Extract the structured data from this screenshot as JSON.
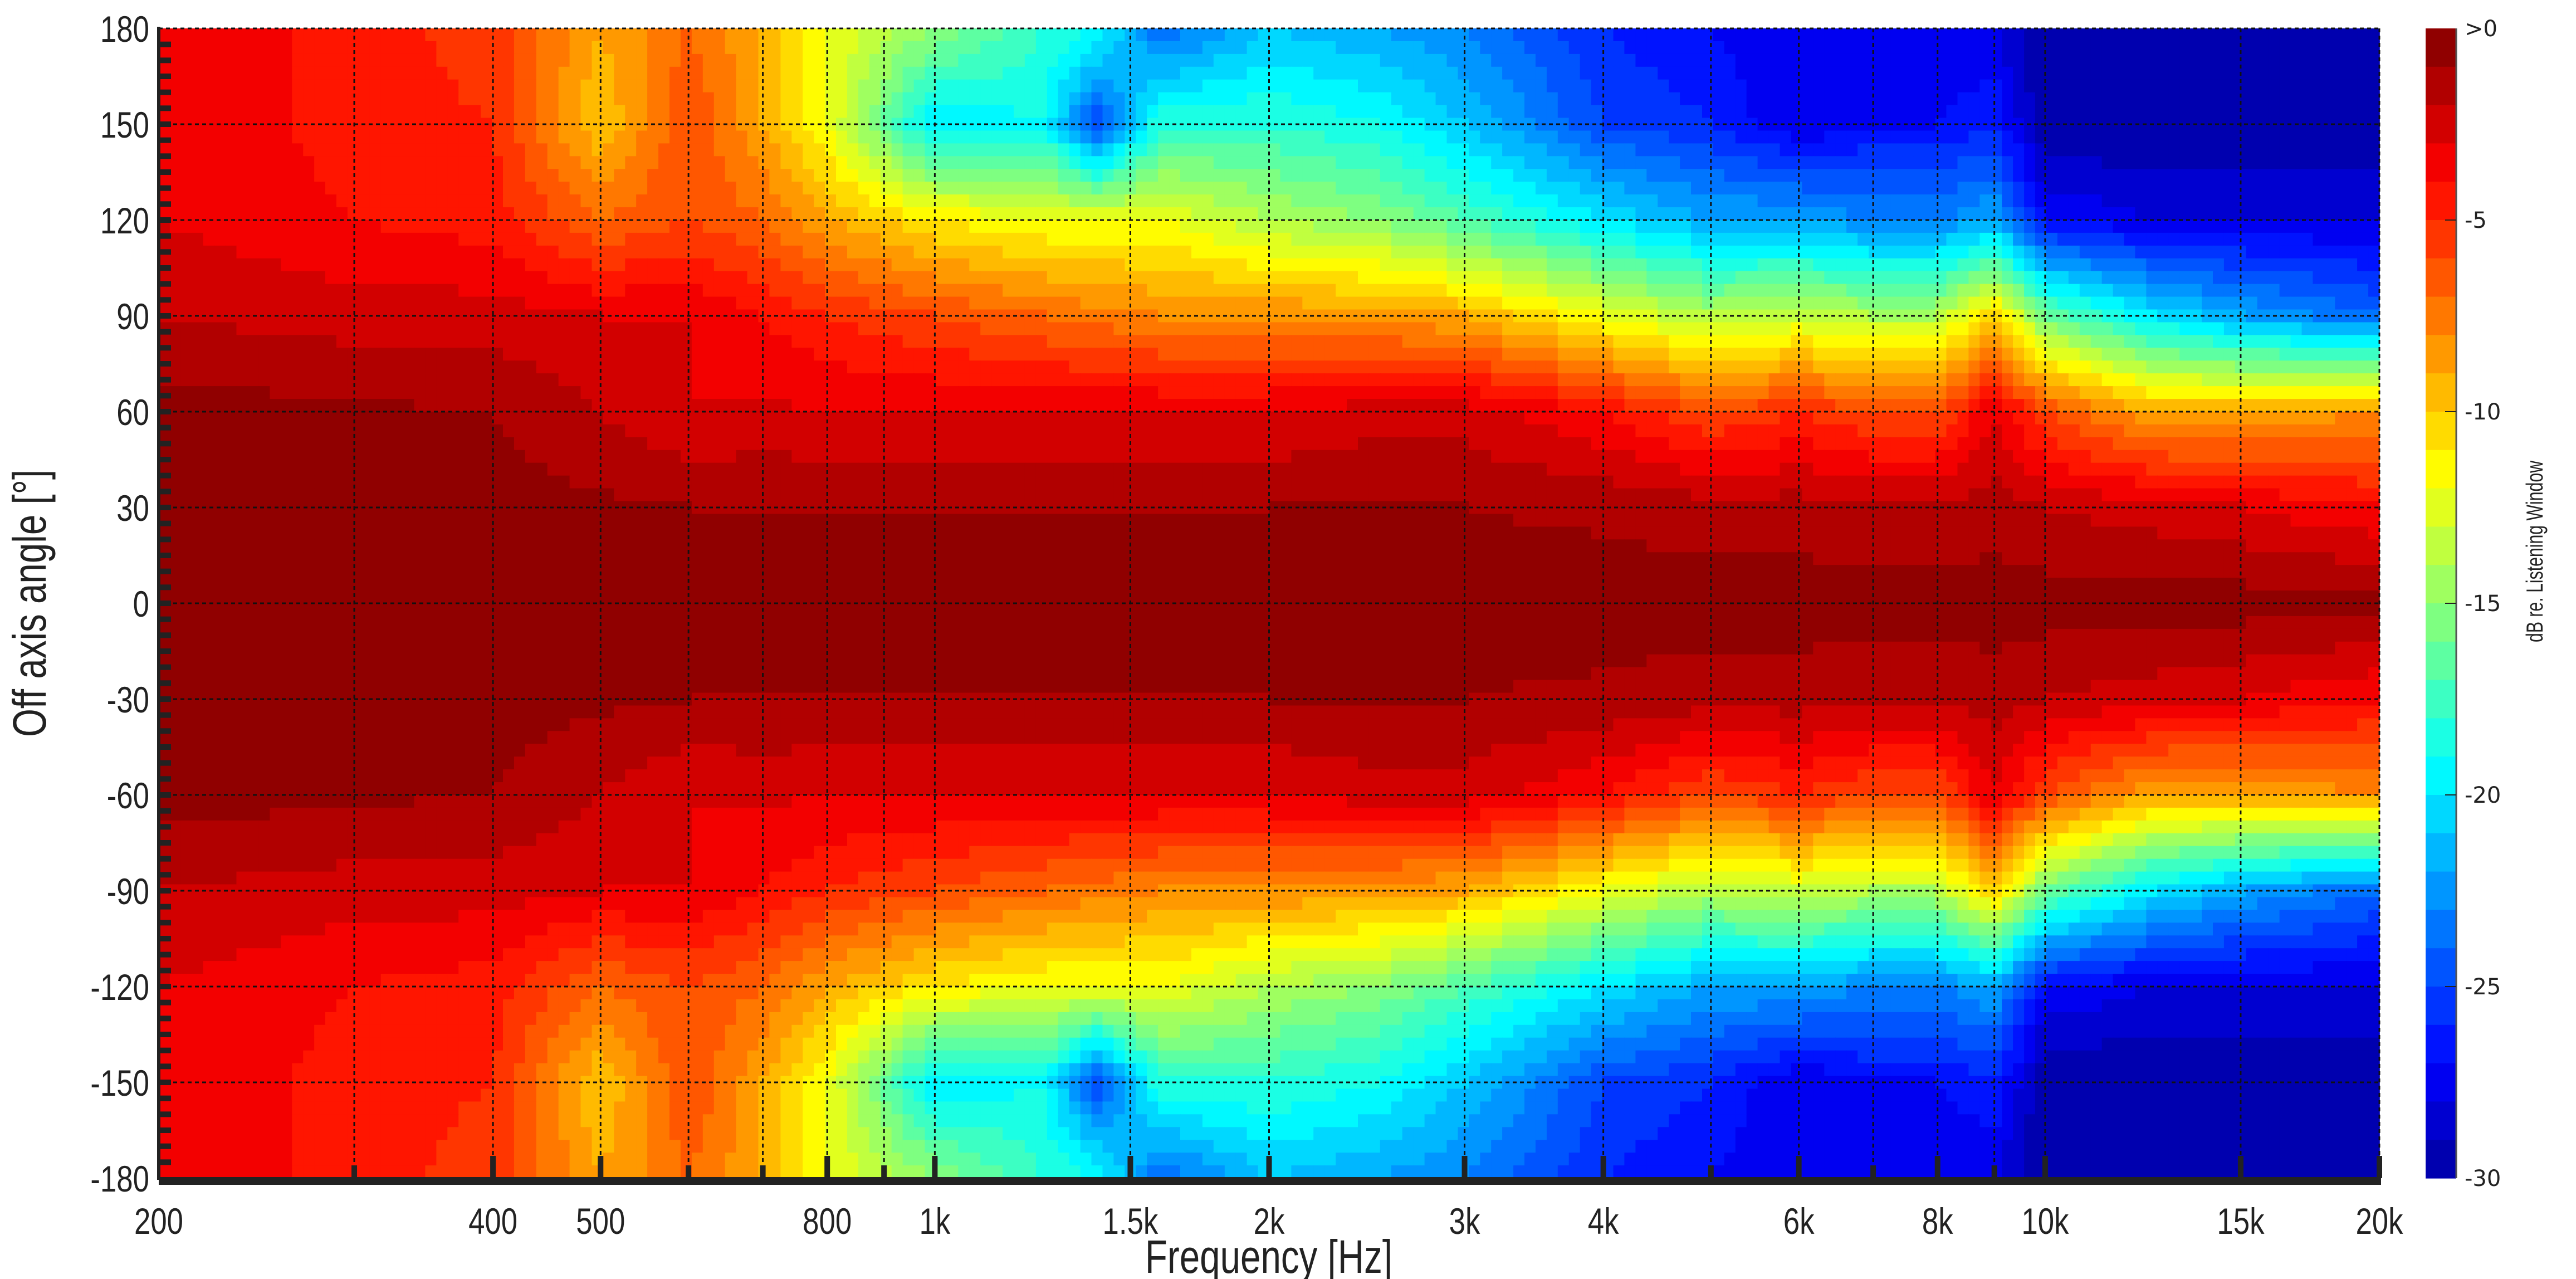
{
  "chart_data": {
    "type": "heatmap",
    "title": "",
    "xlabel": "Frequency [Hz]",
    "ylabel": "Off axis angle [°]",
    "xscale": "log",
    "xlim": [
      200,
      20000
    ],
    "ylim": [
      -180,
      180
    ],
    "grid": true,
    "x_tick_values": [
      200,
      400,
      500,
      800,
      1000,
      1500,
      2000,
      3000,
      4000,
      6000,
      8000,
      10000,
      15000,
      20000
    ],
    "x_tick_labels": [
      "200",
      "400",
      "500",
      "800",
      "1k",
      "1.5k",
      "2k",
      "3k",
      "4k",
      "6k",
      "8k",
      "10k",
      "15k",
      "20k"
    ],
    "x_minor_grid": [
      300,
      600,
      700,
      900,
      5000,
      7000,
      9000
    ],
    "y_tick_values": [
      180,
      150,
      120,
      90,
      60,
      30,
      0,
      -30,
      -60,
      -90,
      -120,
      -150,
      -180
    ],
    "y_tick_labels": [
      "180",
      "150",
      "120",
      "90",
      "60",
      "30",
      "0",
      "-30",
      "-60",
      "-90",
      "-120",
      "-150",
      "-180"
    ],
    "colorbar": {
      "label": "dB re. Listening Window",
      "range": [
        -30,
        0
      ],
      "step": 1,
      "tick_values": [
        0,
        -5,
        -10,
        -15,
        -20,
        -25,
        -30
      ],
      "tick_labels": [
        ">0",
        "-5",
        "-10",
        "-15",
        "-20",
        "-25",
        "-30"
      ],
      "colormap": "jet"
    },
    "symmetric_about_0deg": true,
    "frequencies": [
      200,
      300,
      400,
      500,
      600,
      700,
      800,
      1000,
      1250,
      1400,
      1600,
      2000,
      2500,
      3000,
      4000,
      5000,
      6000,
      7000,
      8000,
      9000,
      10000,
      12500,
      15000,
      20000
    ],
    "angles": [
      0,
      30,
      60,
      90,
      120,
      150,
      180
    ],
    "values_db": [
      [
        -0.5,
        -0.5,
        -0.5,
        -0.5,
        -0.5,
        -0.5,
        -0.5,
        -0.5,
        -0.5,
        -0.5,
        -0.5,
        -0.5,
        -0.5,
        -0.5,
        -0.5,
        -0.5,
        -0.5,
        -0.5,
        -0.5,
        -0.5,
        -0.5,
        -0.5,
        -0.5,
        -0.5
      ],
      [
        -0.5,
        -0.5,
        -0.6,
        -0.8,
        -1,
        -1,
        -1,
        -1,
        -1,
        -1,
        -1,
        -1,
        -0.8,
        -1,
        -1.2,
        -1.5,
        -1.5,
        -1.8,
        -1.8,
        -1.5,
        -2,
        -2.5,
        -3,
        -4
      ],
      [
        -0.5,
        -0.8,
        -1,
        -2,
        -3,
        -2.8,
        -3,
        -3,
        -3,
        -3,
        -3,
        -3,
        -2.5,
        -2.5,
        -4,
        -6,
        -5,
        -6,
        -6,
        -3,
        -6,
        -9,
        -9,
        -8
      ],
      [
        -2,
        -2.5,
        -2.5,
        -3,
        -3,
        -4,
        -5,
        -6,
        -7,
        -7.5,
        -8,
        -8,
        -8.5,
        -9,
        -12,
        -14,
        -13,
        -14,
        -14,
        -10,
        -16,
        -20,
        -22,
        -24
      ],
      [
        -3,
        -4,
        -4.5,
        -7,
        -6,
        -7,
        -9,
        -11,
        -12,
        -12,
        -12,
        -14,
        -15,
        -17,
        -20,
        -22,
        -22,
        -23,
        -23,
        -22,
        -27,
        -28,
        -28,
        -28
      ],
      [
        -3,
        -4.5,
        -5,
        -10,
        -6,
        -9,
        -12,
        -20,
        -19,
        -25,
        -18,
        -18,
        -19,
        -21,
        -25,
        -26,
        -28,
        -27,
        -27,
        -26,
        -30,
        -30,
        -30,
        -30
      ],
      [
        -3,
        -4.5,
        -5.5,
        -9,
        -7,
        -9,
        -12,
        -15,
        -18,
        -19,
        -24,
        -21,
        -22,
        -23,
        -26,
        -27,
        -28,
        -28,
        -28,
        -28,
        -30,
        -30,
        -30,
        -30
      ]
    ]
  }
}
